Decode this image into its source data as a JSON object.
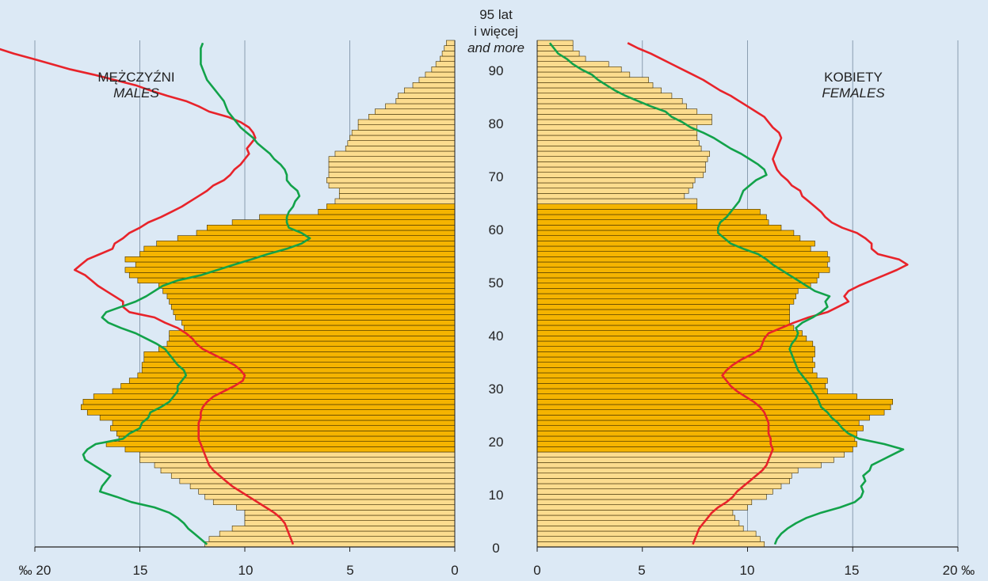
{
  "chart_data": {
    "type": "population-pyramid",
    "x_unit": "‰",
    "x_ticks_males": [
      "20",
      "15",
      "10",
      "5",
      "0"
    ],
    "x_ticks_females": [
      "0",
      "5",
      "10",
      "15",
      "20"
    ],
    "x_unit_left": "‰ 20",
    "x_unit_right": "20 ‰",
    "xlim": [
      0,
      20
    ],
    "age_ticks": [
      "0",
      "10",
      "20",
      "30",
      "40",
      "50",
      "60",
      "70",
      "80",
      "90"
    ],
    "top_age_label": [
      "95 lat",
      "i więcej",
      "and more"
    ],
    "males_label": {
      "pl": "MĘŻCZYŹNI",
      "en": "MALES"
    },
    "females_label": {
      "pl": "KOBIETY",
      "en": "FEMALES"
    },
    "colors": {
      "bar_dark": "#f5b400",
      "bar_light": "#fcdc8e",
      "bar_edge": "#3a2a00",
      "line_red": "#e8232a",
      "line_green": "#12a24a",
      "background": "#dce9f5",
      "grid": "#8a9db0"
    },
    "dark_bar_age_range": [
      18,
      64
    ],
    "ages": [
      0,
      1,
      2,
      3,
      4,
      5,
      6,
      7,
      8,
      9,
      10,
      11,
      12,
      13,
      14,
      15,
      16,
      17,
      18,
      19,
      20,
      21,
      22,
      23,
      24,
      25,
      26,
      27,
      28,
      29,
      30,
      31,
      32,
      33,
      34,
      35,
      36,
      37,
      38,
      39,
      40,
      41,
      42,
      43,
      44,
      45,
      46,
      47,
      48,
      49,
      50,
      51,
      52,
      53,
      54,
      55,
      56,
      57,
      58,
      59,
      60,
      61,
      62,
      63,
      64,
      65,
      66,
      67,
      68,
      69,
      70,
      71,
      72,
      73,
      74,
      75,
      76,
      77,
      78,
      79,
      80,
      81,
      82,
      83,
      84,
      85,
      86,
      87,
      88,
      89,
      90,
      91,
      92,
      93,
      94,
      95
    ],
    "males_bars": [
      11.9,
      11.7,
      11.2,
      10.6,
      10.0,
      10.0,
      10.0,
      10.4,
      11.5,
      11.9,
      12.2,
      12.6,
      13.1,
      13.5,
      14.0,
      14.3,
      15.0,
      15.0,
      15.7,
      16.6,
      16.0,
      16.1,
      16.4,
      16.3,
      16.9,
      17.5,
      17.8,
      17.7,
      17.2,
      16.3,
      15.9,
      15.5,
      15.1,
      14.9,
      14.9,
      14.8,
      14.8,
      14.1,
      13.7,
      13.6,
      13.6,
      12.9,
      13.0,
      13.3,
      13.4,
      13.5,
      13.6,
      13.7,
      13.9,
      14.1,
      15.1,
      15.5,
      15.7,
      15.2,
      15.7,
      15.0,
      14.8,
      14.2,
      13.2,
      12.3,
      11.8,
      10.6,
      9.3,
      6.5,
      6.1,
      5.7,
      5.5,
      5.5,
      6.0,
      6.1,
      6.0,
      6.0,
      6.0,
      6.0,
      5.7,
      5.2,
      5.1,
      5.0,
      4.9,
      4.6,
      4.6,
      4.1,
      3.8,
      3.3,
      2.8,
      2.7,
      2.4,
      2.0,
      1.7,
      1.4,
      1.1,
      0.9,
      0.7,
      0.6,
      0.5,
      0.4
    ],
    "males_line_red": [
      7.7,
      7.8,
      7.9,
      8.0,
      8.1,
      8.3,
      8.6,
      9.0,
      9.4,
      9.8,
      10.2,
      10.6,
      10.9,
      11.2,
      11.5,
      11.7,
      11.8,
      11.9,
      12.0,
      12.1,
      12.2,
      12.2,
      12.2,
      12.2,
      12.1,
      12.1,
      12.0,
      11.8,
      11.5,
      11.0,
      10.5,
      10.1,
      10.0,
      10.2,
      10.5,
      11.0,
      11.5,
      12.0,
      12.3,
      12.5,
      12.8,
      13.2,
      13.8,
      14.3,
      15.5,
      15.8,
      15.8,
      16.2,
      16.6,
      17.0,
      17.3,
      17.6,
      18.1,
      17.8,
      17.5,
      16.9,
      16.3,
      16.2,
      15.8,
      15.5,
      15.0,
      14.6,
      14.0,
      13.5,
      13.0,
      12.6,
      12.2,
      11.8,
      11.5,
      11.0,
      10.7,
      10.5,
      10.2,
      10.0,
      9.8,
      9.9,
      9.7,
      9.5,
      9.6,
      9.8,
      10.2,
      10.8,
      11.7,
      12.2,
      12.8,
      13.7,
      14.5,
      15.2,
      16.2,
      17.2,
      18.3,
      19.2,
      20.1,
      21.0,
      21.8,
      22.6
    ],
    "males_line_green": [
      11.8,
      12.1,
      12.4,
      12.7,
      12.9,
      13.2,
      13.6,
      14.3,
      15.4,
      16.1,
      16.9,
      16.8,
      16.6,
      16.4,
      16.8,
      17.2,
      17.6,
      17.7,
      17.5,
      17.1,
      15.8,
      15.5,
      15.0,
      14.9,
      14.6,
      14.5,
      14.0,
      13.6,
      13.4,
      13.2,
      13.2,
      13.0,
      12.8,
      12.9,
      13.2,
      13.4,
      13.6,
      13.8,
      14.2,
      14.7,
      15.2,
      15.9,
      16.5,
      16.8,
      16.6,
      15.9,
      15.2,
      14.7,
      14.3,
      13.9,
      13.2,
      12.1,
      11.3,
      10.5,
      9.7,
      8.9,
      8.0,
      7.3,
      6.9,
      7.3,
      7.9,
      8.0,
      8.0,
      7.9,
      7.7,
      7.6,
      7.4,
      7.5,
      7.8,
      8.0,
      8.0,
      8.1,
      8.3,
      8.6,
      8.8,
      9.1,
      9.4,
      9.6,
      9.9,
      10.2,
      10.4,
      10.6,
      10.8,
      10.9,
      11.0,
      11.2,
      11.4,
      11.6,
      11.8,
      11.9,
      12.0,
      12.1,
      12.1,
      12.1,
      12.1,
      12.0
    ],
    "females_bars": [
      10.8,
      10.6,
      10.4,
      9.8,
      9.6,
      9.4,
      9.3,
      10.0,
      10.2,
      10.9,
      11.2,
      11.6,
      12.0,
      12.1,
      12.4,
      13.5,
      14.1,
      14.6,
      15.0,
      15.2,
      15.1,
      15.2,
      15.5,
      15.3,
      15.8,
      16.5,
      16.8,
      16.9,
      15.2,
      13.8,
      13.7,
      13.8,
      13.3,
      13.1,
      13.2,
      13.1,
      13.2,
      13.2,
      13.1,
      12.8,
      12.6,
      12.2,
      12.0,
      12.0,
      12.0,
      12.0,
      12.2,
      12.3,
      12.4,
      13.0,
      13.3,
      13.4,
      13.9,
      13.8,
      13.9,
      13.8,
      13.0,
      13.2,
      12.5,
      12.2,
      11.6,
      11.0,
      10.9,
      10.6,
      7.6,
      7.6,
      7.0,
      7.2,
      7.4,
      7.5,
      7.9,
      8.0,
      8.0,
      8.1,
      8.2,
      7.8,
      7.7,
      7.6,
      7.6,
      7.6,
      8.3,
      8.3,
      7.6,
      7.1,
      6.9,
      6.4,
      5.9,
      5.5,
      5.3,
      4.4,
      4.0,
      3.4,
      2.3,
      2.0,
      1.7,
      1.7
    ],
    "females_line_red": [
      7.4,
      7.5,
      7.6,
      7.7,
      7.9,
      8.1,
      8.3,
      8.6,
      9.0,
      9.3,
      9.5,
      9.8,
      10.1,
      10.4,
      10.7,
      10.9,
      11.0,
      11.1,
      11.2,
      11.1,
      11.1,
      11.0,
      11.0,
      11.0,
      10.9,
      10.8,
      10.6,
      10.3,
      9.9,
      9.5,
      9.2,
      9.0,
      8.8,
      9.0,
      9.3,
      9.7,
      10.2,
      10.6,
      10.7,
      10.8,
      11.0,
      11.6,
      12.2,
      12.9,
      13.8,
      14.3,
      14.8,
      14.6,
      14.8,
      15.3,
      15.9,
      16.5,
      17.1,
      17.6,
      17.2,
      16.2,
      15.9,
      15.9,
      15.6,
      15.2,
      14.5,
      14.0,
      13.7,
      13.5,
      13.2,
      12.9,
      12.6,
      12.5,
      12.1,
      11.9,
      11.6,
      11.4,
      11.3,
      11.2,
      11.3,
      11.4,
      11.5,
      11.6,
      11.5,
      11.2,
      11.0,
      10.8,
      10.4,
      10.0,
      9.6,
      9.2,
      8.7,
      8.3,
      7.9,
      7.4,
      6.9,
      6.4,
      5.9,
      5.4,
      4.8,
      4.3
    ],
    "females_line_green": [
      11.3,
      11.4,
      11.6,
      11.9,
      12.3,
      12.8,
      13.5,
      14.4,
      15.1,
      15.4,
      15.5,
      15.4,
      15.6,
      15.5,
      15.8,
      15.9,
      16.4,
      16.9,
      17.4,
      16.5,
      15.3,
      14.8,
      14.5,
      14.3,
      14.0,
      13.8,
      13.5,
      13.4,
      13.3,
      13.1,
      13.0,
      12.8,
      12.6,
      12.4,
      12.3,
      12.2,
      12.1,
      12.0,
      12.1,
      12.3,
      12.4,
      12.3,
      12.6,
      13.1,
      13.5,
      13.8,
      13.7,
      13.9,
      13.2,
      12.8,
      12.4,
      12.0,
      11.6,
      11.2,
      10.9,
      10.5,
      9.8,
      9.2,
      8.9,
      8.6,
      8.6,
      8.7,
      9.0,
      9.2,
      9.4,
      9.6,
      9.7,
      9.8,
      10.1,
      10.4,
      10.9,
      10.8,
      10.5,
      10.1,
      9.7,
      9.2,
      8.8,
      8.4,
      7.9,
      7.3,
      6.9,
      6.4,
      6.1,
      5.4,
      4.8,
      4.2,
      3.7,
      3.3,
      2.9,
      2.6,
      2.1,
      1.7,
      1.4,
      1.0,
      0.8,
      0.6
    ]
  }
}
